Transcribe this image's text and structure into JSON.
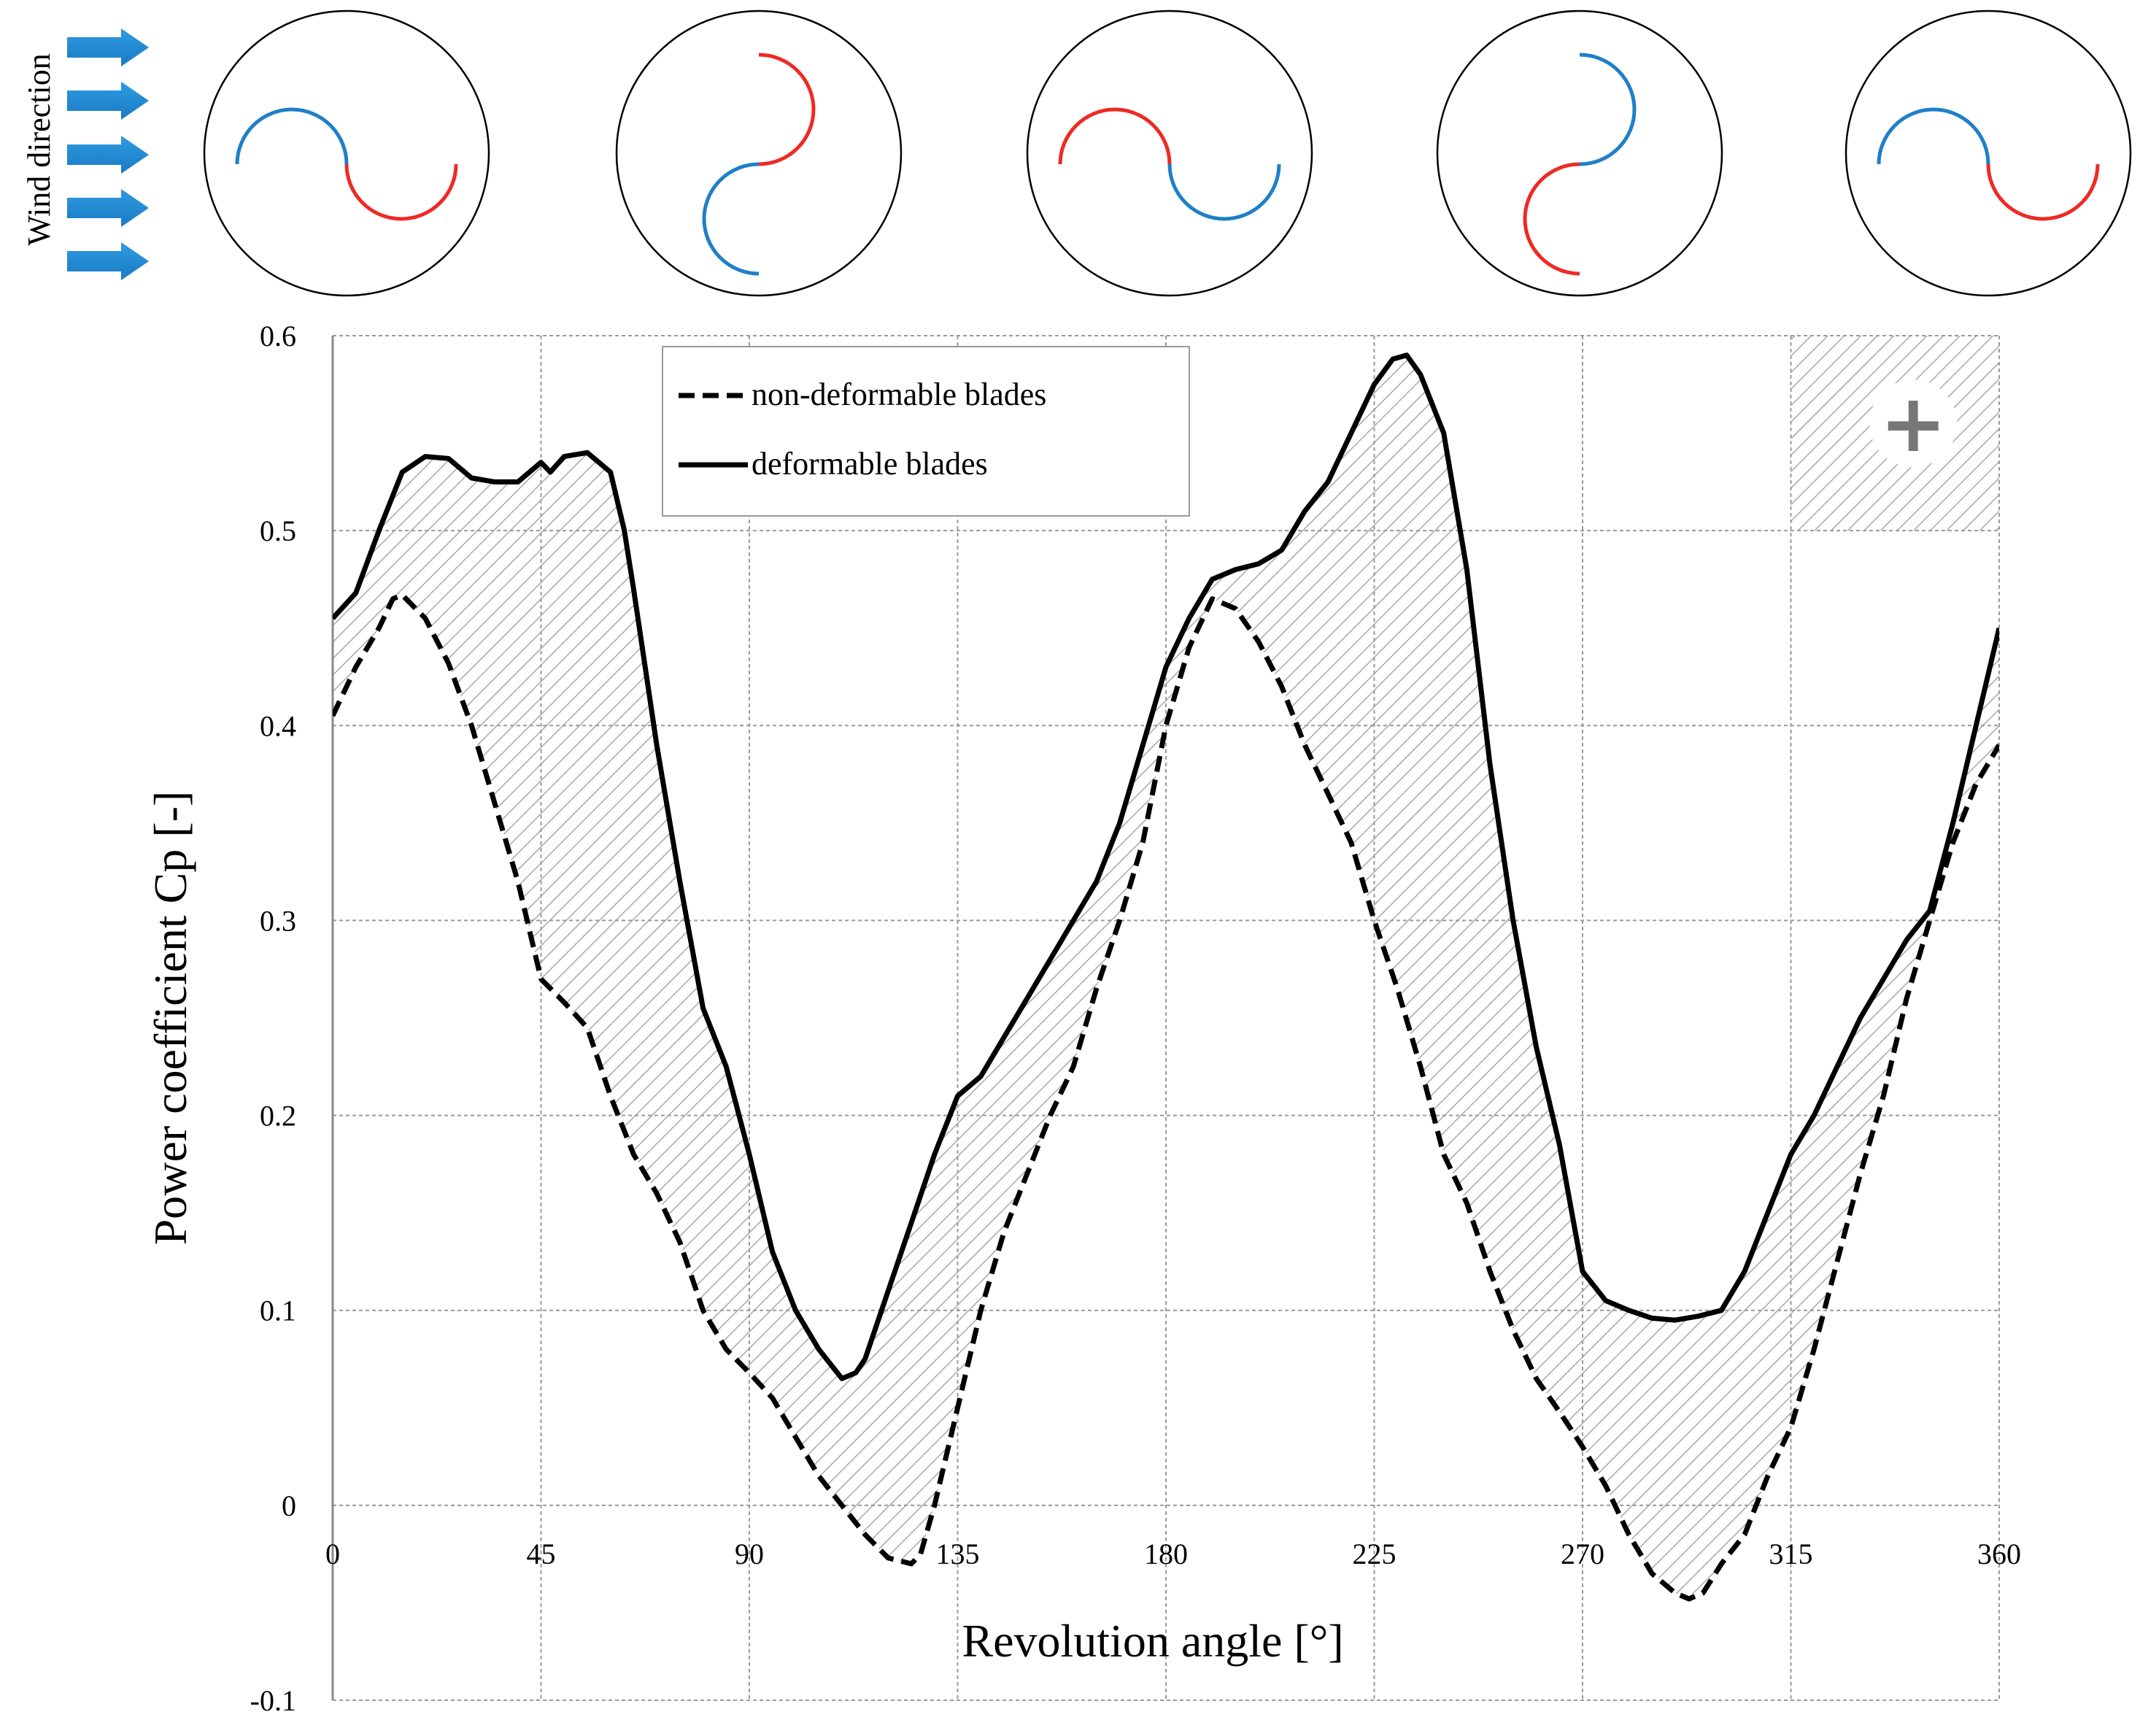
{
  "chart_data": {
    "type": "line",
    "title": "",
    "xlabel": "Revolution angle [°]",
    "ylabel": "Power coefficient Cp [-]",
    "xlim": [
      0,
      360
    ],
    "ylim": [
      -0.1,
      0.6
    ],
    "x_ticks": [
      0,
      45,
      90,
      135,
      180,
      225,
      270,
      315,
      360
    ],
    "x_tick_labels": [
      "0",
      "45",
      "90",
      "135",
      "180",
      "225",
      "270",
      "315",
      "360"
    ],
    "y_ticks": [
      -0.1,
      0,
      0.1,
      0.2,
      0.3,
      0.4,
      0.5,
      0.6
    ],
    "y_tick_labels": [
      "-0.1",
      "0",
      "0.1",
      "0.2",
      "0.3",
      "0.4",
      "0.5",
      "0.6"
    ],
    "grid": true,
    "legend_position": "top-center",
    "series": [
      {
        "name": "non-deformable blades",
        "style": "dashed",
        "color": "#000000",
        "x": [
          0,
          5,
          10,
          13,
          15,
          20,
          25,
          30,
          35,
          40,
          45,
          50,
          55,
          60,
          65,
          70,
          75,
          80,
          85,
          90,
          95,
          100,
          105,
          110,
          115,
          120,
          125,
          127,
          130,
          135,
          140,
          145,
          150,
          155,
          160,
          165,
          170,
          175,
          180,
          185,
          190,
          195,
          200,
          205,
          210,
          215,
          220,
          225,
          230,
          235,
          240,
          245,
          250,
          255,
          260,
          265,
          270,
          275,
          280,
          285,
          290,
          293,
          296,
          300,
          305,
          310,
          315,
          320,
          325,
          330,
          335,
          340,
          345,
          350,
          355,
          360
        ],
        "values": [
          0.405,
          0.43,
          0.45,
          0.465,
          0.467,
          0.455,
          0.432,
          0.4,
          0.36,
          0.32,
          0.27,
          0.258,
          0.245,
          0.21,
          0.18,
          0.16,
          0.135,
          0.1,
          0.08,
          0.068,
          0.055,
          0.035,
          0.015,
          0.0,
          -0.015,
          -0.027,
          -0.03,
          -0.025,
          0.0,
          0.05,
          0.1,
          0.14,
          0.17,
          0.2,
          0.225,
          0.265,
          0.3,
          0.34,
          0.4,
          0.44,
          0.465,
          0.46,
          0.443,
          0.42,
          0.39,
          0.365,
          0.34,
          0.3,
          0.265,
          0.225,
          0.18,
          0.155,
          0.12,
          0.09,
          0.065,
          0.048,
          0.03,
          0.01,
          -0.015,
          -0.035,
          -0.045,
          -0.048,
          -0.045,
          -0.03,
          -0.015,
          0.015,
          0.04,
          0.08,
          0.125,
          0.17,
          0.21,
          0.26,
          0.3,
          0.34,
          0.37,
          0.39
        ]
      },
      {
        "name": "deformable blades",
        "style": "solid",
        "color": "#000000",
        "x": [
          0,
          5,
          10,
          15,
          20,
          25,
          30,
          35,
          40,
          45,
          47,
          50,
          55,
          60,
          63,
          65,
          70,
          75,
          80,
          85,
          90,
          95,
          100,
          105,
          110,
          113,
          115,
          120,
          125,
          130,
          135,
          140,
          145,
          150,
          155,
          160,
          165,
          170,
          175,
          180,
          185,
          190,
          195,
          200,
          205,
          210,
          215,
          220,
          225,
          229,
          232,
          235,
          240,
          245,
          250,
          255,
          260,
          265,
          270,
          275,
          280,
          285,
          290,
          295,
          300,
          305,
          310,
          315,
          320,
          325,
          330,
          335,
          340,
          345,
          350,
          355,
          360
        ],
        "values": [
          0.455,
          0.468,
          0.5,
          0.53,
          0.538,
          0.537,
          0.527,
          0.525,
          0.525,
          0.535,
          0.53,
          0.538,
          0.54,
          0.53,
          0.5,
          0.47,
          0.39,
          0.32,
          0.255,
          0.225,
          0.18,
          0.13,
          0.1,
          0.08,
          0.065,
          0.068,
          0.075,
          0.11,
          0.145,
          0.18,
          0.21,
          0.22,
          0.24,
          0.26,
          0.28,
          0.3,
          0.32,
          0.35,
          0.39,
          0.43,
          0.455,
          0.475,
          0.48,
          0.483,
          0.49,
          0.51,
          0.525,
          0.55,
          0.575,
          0.588,
          0.59,
          0.58,
          0.55,
          0.48,
          0.38,
          0.3,
          0.235,
          0.185,
          0.12,
          0.105,
          0.1,
          0.096,
          0.095,
          0.097,
          0.1,
          0.12,
          0.15,
          0.18,
          0.2,
          0.225,
          0.25,
          0.27,
          0.29,
          0.305,
          0.35,
          0.4,
          0.45
        ]
      }
    ],
    "annotations": {
      "plus_region": {
        "x_range": [
          315,
          360
        ],
        "y_range": [
          0.5,
          0.6
        ],
        "symbol": "+"
      },
      "wind_label": "Wind direction",
      "rotor_positions": 5
    }
  }
}
